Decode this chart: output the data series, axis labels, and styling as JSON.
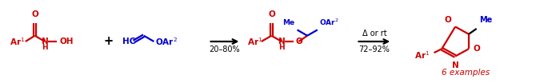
{
  "background_color": "#ffffff",
  "red": "#cc0000",
  "blue": "#0000cc",
  "black": "#000000",
  "fig_width": 6.85,
  "fig_height": 1.04,
  "dpi": 100,
  "arrow1_label": "20–80%",
  "arrow2_label1": "Δ or rt",
  "arrow2_label2": "72–92%",
  "label_6ex": "6 examples"
}
